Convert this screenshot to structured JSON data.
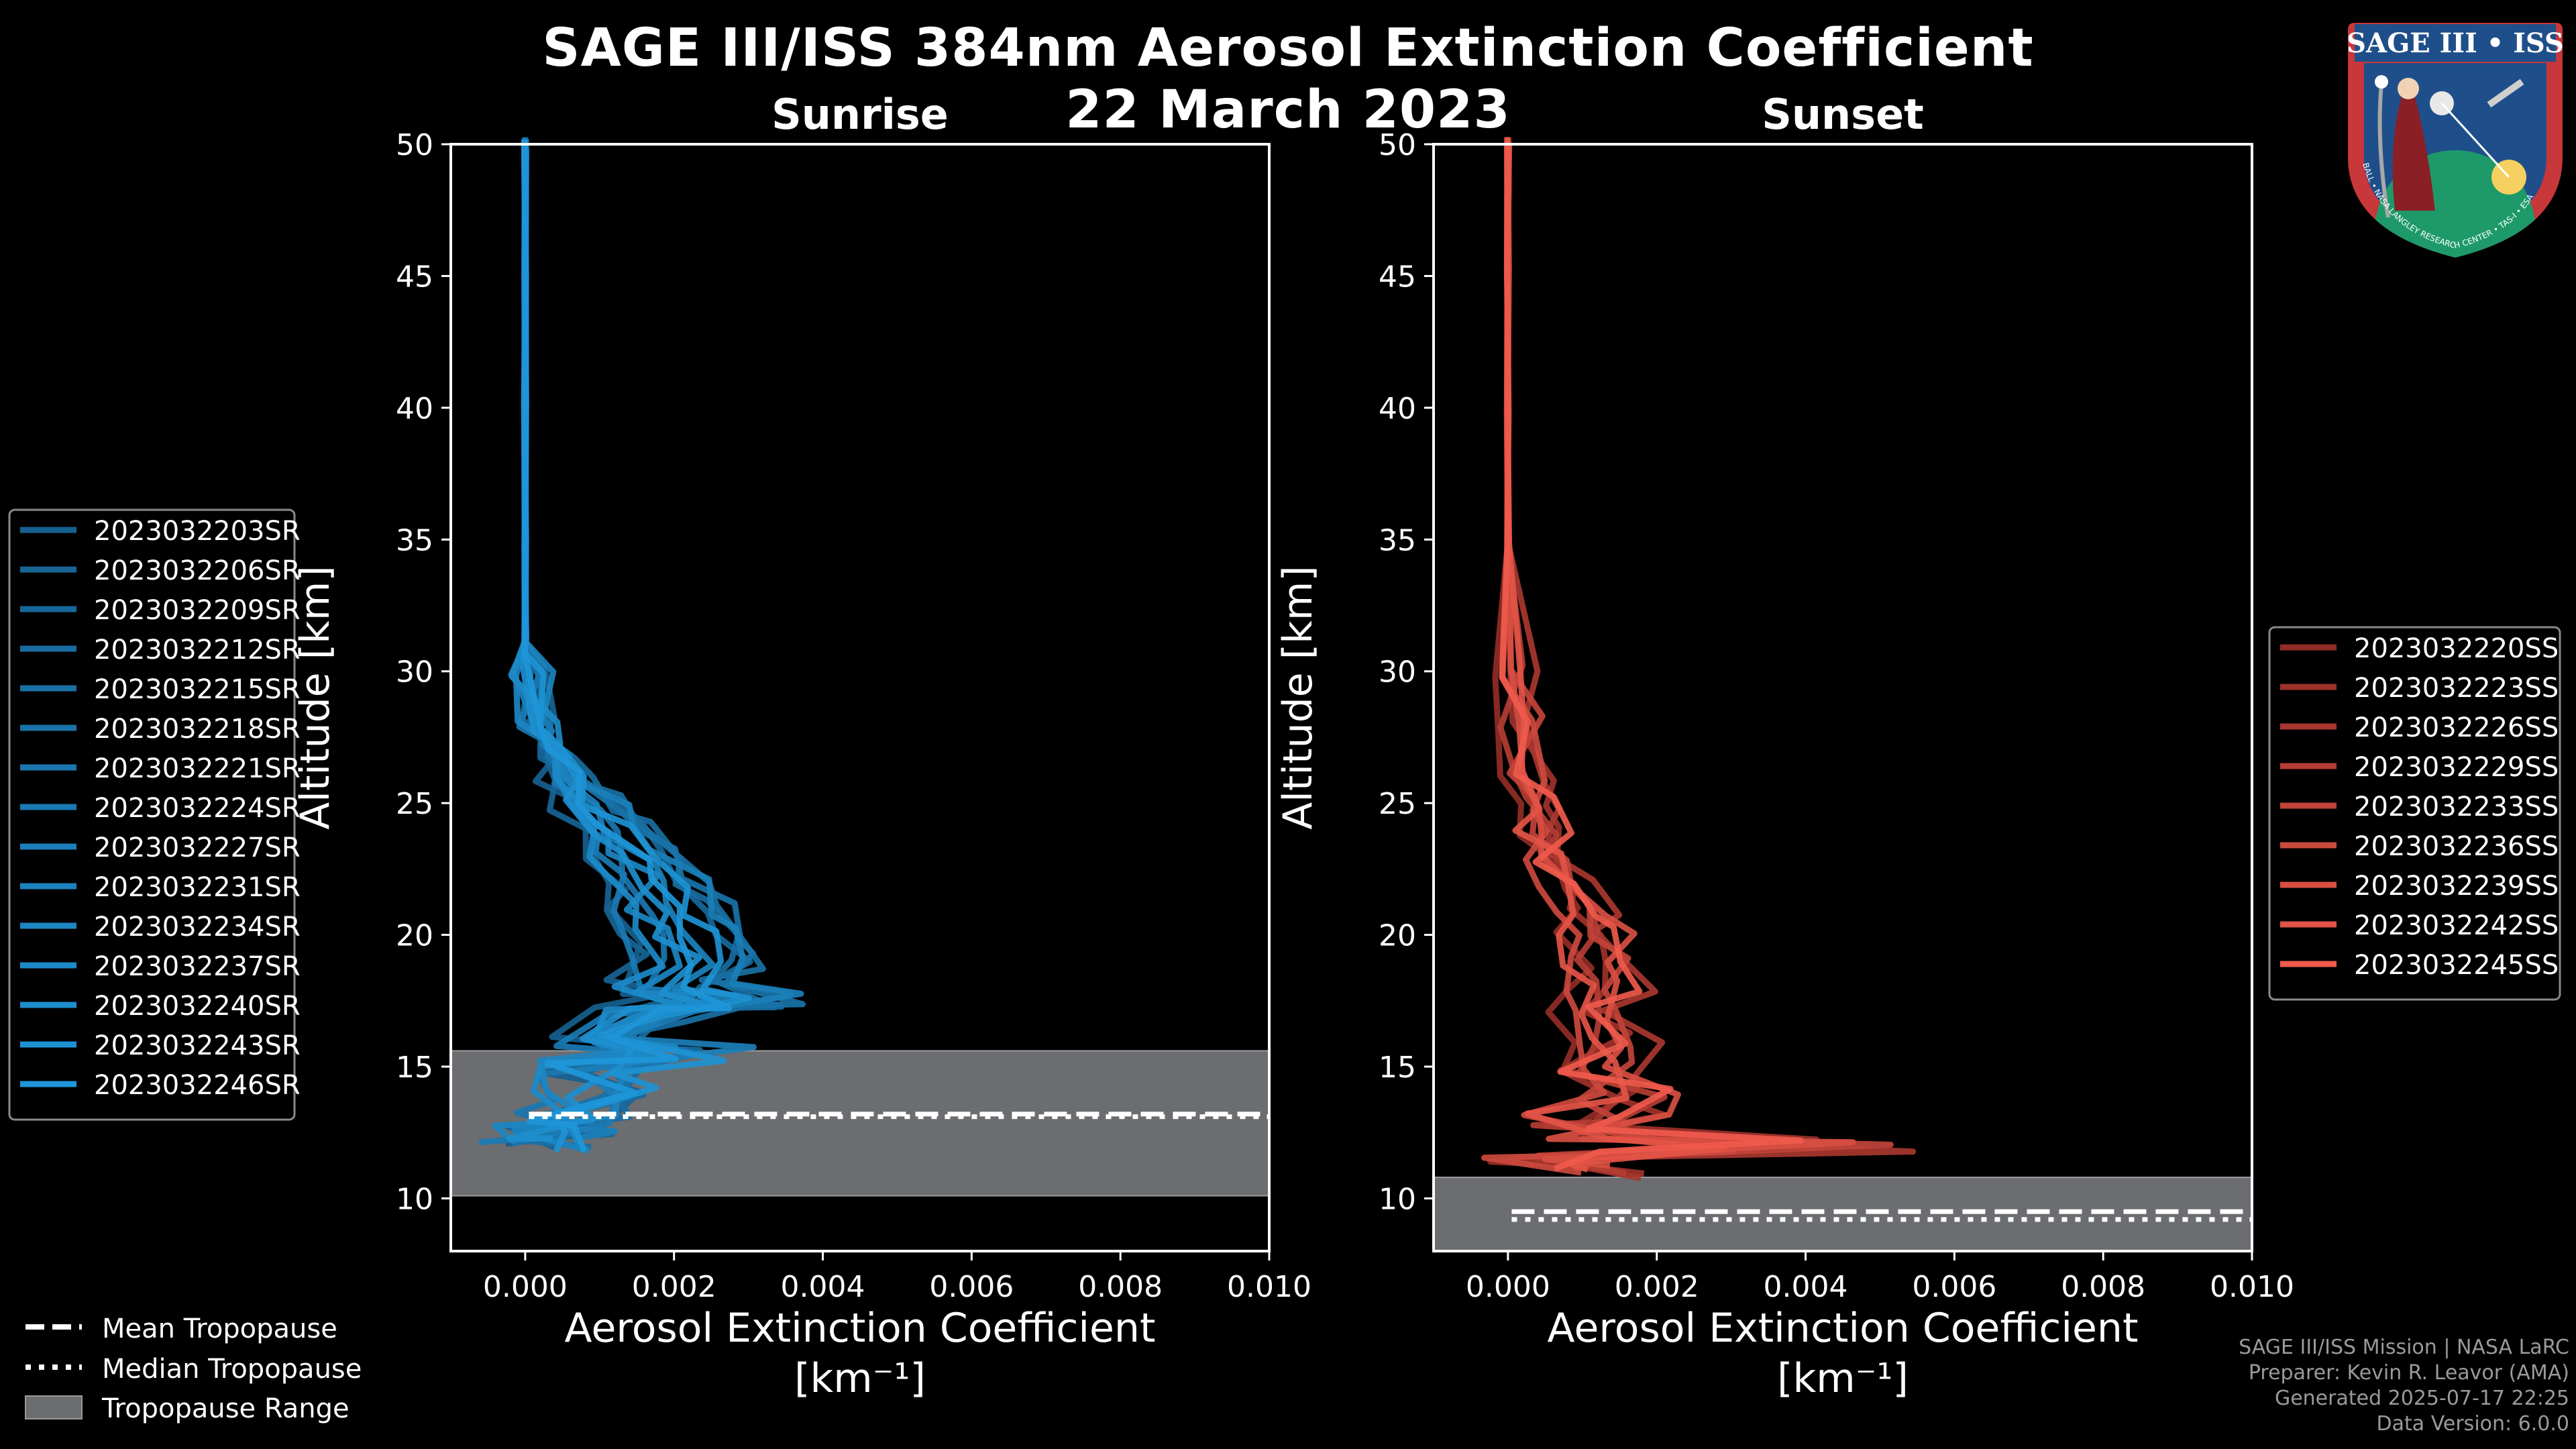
{
  "figure": {
    "title_line1": "SAGE III/ISS 384nm Aerosol Extinction Coefficient",
    "title_line2": "22 March 2023",
    "colors": {
      "background": "#000000",
      "sunrise": "#1e96d8",
      "sunset": "#ef5a4c",
      "tropopause_band": "#6b6d70"
    }
  },
  "chart_data": [
    {
      "type": "line",
      "panel": "Sunrise",
      "title": "Sunrise",
      "xlabel": "Aerosol Extinction Coefficient",
      "xlabel_units": "[km⁻¹]",
      "ylabel": "Altitude [km]",
      "xlim": [
        -0.001,
        0.01
      ],
      "ylim": [
        8,
        50
      ],
      "xticks": [
        "0.000",
        "0.002",
        "0.004",
        "0.006",
        "0.008",
        "0.010"
      ],
      "yticks": [
        "10",
        "15",
        "20",
        "25",
        "30",
        "35",
        "40",
        "45",
        "50"
      ],
      "tropopause": {
        "mean_km": 13.2,
        "median_km": 13.1,
        "range_km": [
          10.1,
          15.6
        ]
      },
      "legend": [
        "2023032203SR",
        "2023032206SR",
        "2023032209SR",
        "2023032212SR",
        "2023032215SR",
        "2023032218SR",
        "2023032221SR",
        "2023032224SR",
        "2023032227SR",
        "2023032231SR",
        "2023032234SR",
        "2023032237SR",
        "2023032240SR",
        "2023032243SR",
        "2023032246SR"
      ],
      "series_profile": {
        "altitude_km": [
          50,
          45,
          40,
          35,
          31,
          30,
          28,
          27,
          26,
          25,
          24,
          23,
          22,
          21,
          20,
          19,
          18,
          17.5,
          17,
          16,
          15.5,
          15,
          14,
          13,
          12.5,
          12
        ],
        "extinction": [
          0.0,
          0.0,
          0.0,
          0.0,
          0.0,
          0.0001,
          0.0002,
          0.0004,
          0.0006,
          0.0009,
          0.0012,
          0.0015,
          0.0018,
          0.002,
          0.0022,
          0.0024,
          0.002,
          0.0028,
          0.0016,
          0.001,
          0.0018,
          0.0008,
          0.0012,
          0.0006,
          0.0004,
          0.0002
        ]
      }
    },
    {
      "type": "line",
      "panel": "Sunset",
      "title": "Sunset",
      "xlabel": "Aerosol Extinction Coefficient",
      "xlabel_units": "[km⁻¹]",
      "ylabel": "Altitude [km]",
      "xlim": [
        -0.001,
        0.01
      ],
      "ylim": [
        8,
        50
      ],
      "xticks": [
        "0.000",
        "0.002",
        "0.004",
        "0.006",
        "0.008",
        "0.010"
      ],
      "yticks": [
        "10",
        "15",
        "20",
        "25",
        "30",
        "35",
        "40",
        "45",
        "50"
      ],
      "tropopause": {
        "mean_km": 9.5,
        "median_km": 9.2,
        "range_km": [
          8.0,
          10.8
        ]
      },
      "legend": [
        "2023032220SS",
        "2023032223SS",
        "2023032226SS",
        "2023032229SS",
        "2023032233SS",
        "2023032236SS",
        "2023032239SS",
        "2023032242SS",
        "2023032245SS"
      ],
      "series_profile": {
        "altitude_km": [
          50,
          45,
          40,
          35,
          30,
          28,
          26,
          25,
          24,
          23,
          22,
          21,
          20,
          19,
          18,
          17,
          16,
          15,
          14,
          13,
          12.5,
          12,
          11.5,
          11
        ],
        "extinction": [
          0.0,
          0.0,
          0.0,
          0.0,
          0.0001,
          0.0002,
          0.0003,
          0.0004,
          0.0005,
          0.0006,
          0.0008,
          0.001,
          0.0012,
          0.0013,
          0.0014,
          0.0012,
          0.0015,
          0.0011,
          0.0016,
          0.0012,
          0.0008,
          0.0042,
          0.0006,
          0.001
        ]
      }
    }
  ],
  "tropopause_legend": {
    "mean": "Mean Tropopause",
    "median": "Median Tropopause",
    "range": "Tropopause Range"
  },
  "logo": {
    "title": "SAGE III • ISS",
    "ring_text": "BALL • NASA LANGLEY RESEARCH CENTER • TAS-I • ESA"
  },
  "credits": {
    "line1": "SAGE III/ISS Mission | NASA LaRC",
    "line2": "Preparer: Kevin R. Leavor (AMA)",
    "line3": "Generated 2025-07-17 22:25",
    "line4": "Data Version: 6.0.0"
  }
}
